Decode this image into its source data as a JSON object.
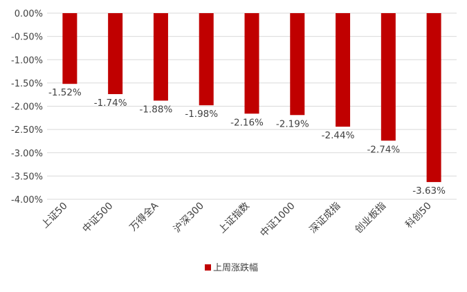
{
  "chart_data": {
    "type": "bar",
    "title": "",
    "xlabel": "",
    "ylabel": "",
    "ylim": [
      -4.0,
      0.0
    ],
    "y_ticks": [
      "0.00%",
      "-0.50%",
      "-1.00%",
      "-1.50%",
      "-2.00%",
      "-2.50%",
      "-3.00%",
      "-3.50%",
      "-4.00%"
    ],
    "y_tick_values": [
      0,
      -0.5,
      -1.0,
      -1.5,
      -2.0,
      -2.5,
      -3.0,
      -3.5,
      -4.0
    ],
    "categories": [
      "上证50",
      "中证500",
      "万得全A",
      "沪深300",
      "上证指数",
      "中证1000",
      "深证成指",
      "创业板指",
      "科创50"
    ],
    "series": [
      {
        "name": "上周涨跌幅",
        "values": [
          -1.52,
          -1.74,
          -1.88,
          -1.98,
          -2.16,
          -2.19,
          -2.44,
          -2.74,
          -3.63
        ],
        "labels": [
          "-1.52%",
          "-1.74%",
          "-1.88%",
          "-1.98%",
          "-2.16%",
          "-2.19%",
          "-2.44%",
          "-2.74%",
          "-3.63%"
        ],
        "color": "#C00000"
      }
    ],
    "grid": true,
    "legend": "bottom-center"
  }
}
